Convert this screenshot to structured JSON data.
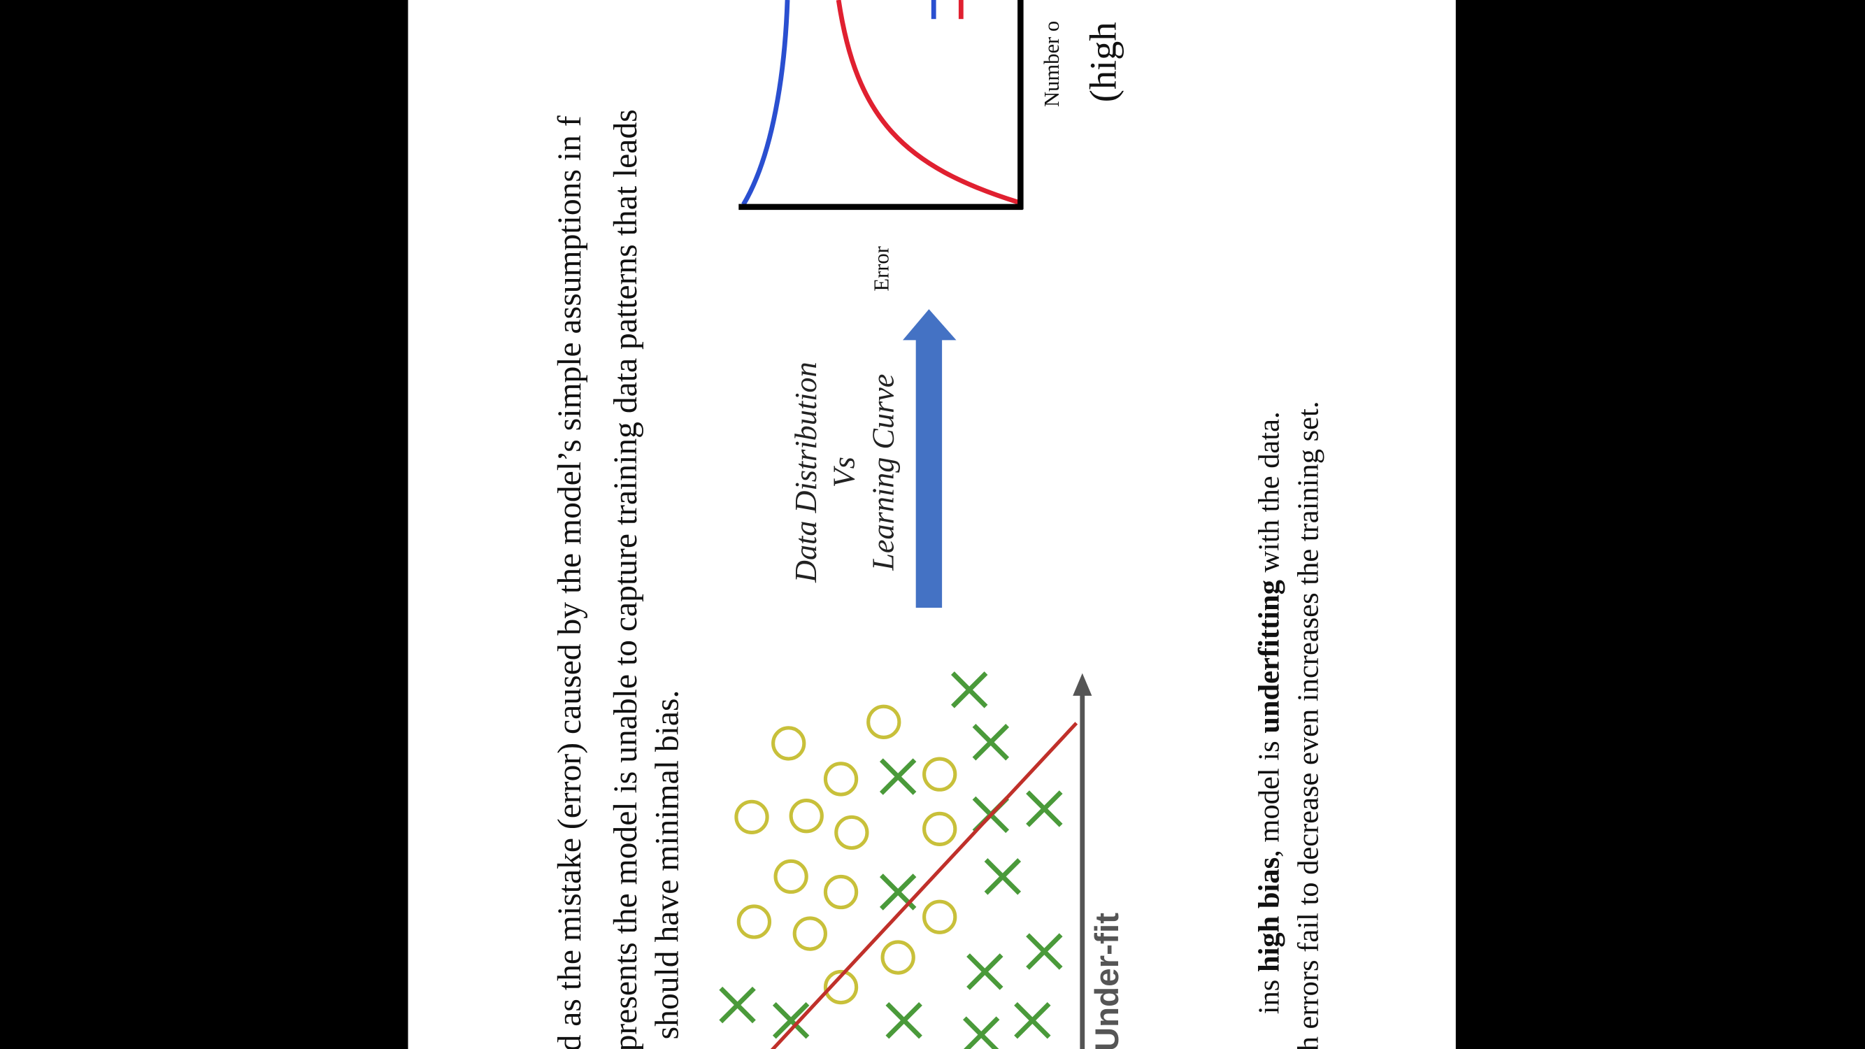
{
  "paragraph1": {
    "lines": [
      "d as the mistake (error) caused by the model’s simple assumptions in f",
      "presents the model is unable to capture training data patterns that leads",
      "should have minimal bias."
    ]
  },
  "figure": {
    "title_lines": [
      "Data Distribution",
      "Vs",
      "Learning Curve"
    ],
    "underfit_label": "Under-fit",
    "curve": {
      "y_axis_label": "Error",
      "x_axis_label": "Number o",
      "caption": "(high"
    }
  },
  "paragraph2": {
    "line1_parts": [
      "ins ",
      "high bias",
      ", model is ",
      "underfitting",
      " with the data."
    ],
    "line2": "h errors fail to decrease even increases the training set."
  }
}
